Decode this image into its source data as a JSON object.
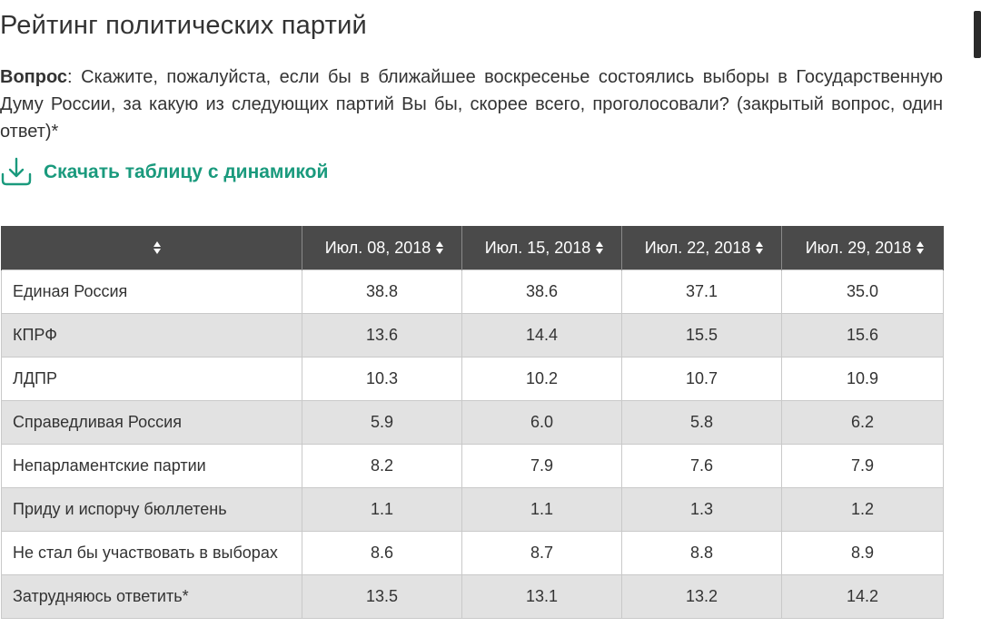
{
  "title": "Рейтинг политических партий",
  "question": {
    "label": "Вопрос",
    "separator": ": ",
    "text": "Скажите, пожалуйста, если бы в ближайшее воскресенье состоялись выборы в Государственную Думу России, за какую из следующих партий Вы бы, скорее всего, проголосовали? (закрытый вопрос, один ответ)*"
  },
  "download": {
    "label": "Скачать таблицу с динамикой",
    "icon": "download-icon",
    "color": "#1a9a7d"
  },
  "table": {
    "header_bg": "#4a4a4a",
    "columns": [
      "",
      "Июл. 08, 2018",
      "Июл. 15, 2018",
      "Июл. 22, 2018",
      "Июл. 29, 2018"
    ],
    "rows": [
      {
        "party": "Единая Россия",
        "values": [
          "38.8",
          "38.6",
          "37.1",
          "35.0"
        ]
      },
      {
        "party": "КПРФ",
        "values": [
          "13.6",
          "14.4",
          "15.5",
          "15.6"
        ]
      },
      {
        "party": "ЛДПР",
        "values": [
          "10.3",
          "10.2",
          "10.7",
          "10.9"
        ]
      },
      {
        "party": "Справедливая Россия",
        "values": [
          "5.9",
          "6.0",
          "5.8",
          "6.2"
        ]
      },
      {
        "party": "Непарламентские партии",
        "values": [
          "8.2",
          "7.9",
          "7.6",
          "7.9"
        ]
      },
      {
        "party": "Приду и испорчу бюллетень",
        "values": [
          "1.1",
          "1.1",
          "1.3",
          "1.2"
        ]
      },
      {
        "party": "Не стал бы участвовать в выборах",
        "values": [
          "8.6",
          "8.7",
          "8.8",
          "8.9"
        ]
      },
      {
        "party": "Затрудняюсь ответить*",
        "values": [
          "13.5",
          "13.1",
          "13.2",
          "14.2"
        ]
      }
    ]
  }
}
